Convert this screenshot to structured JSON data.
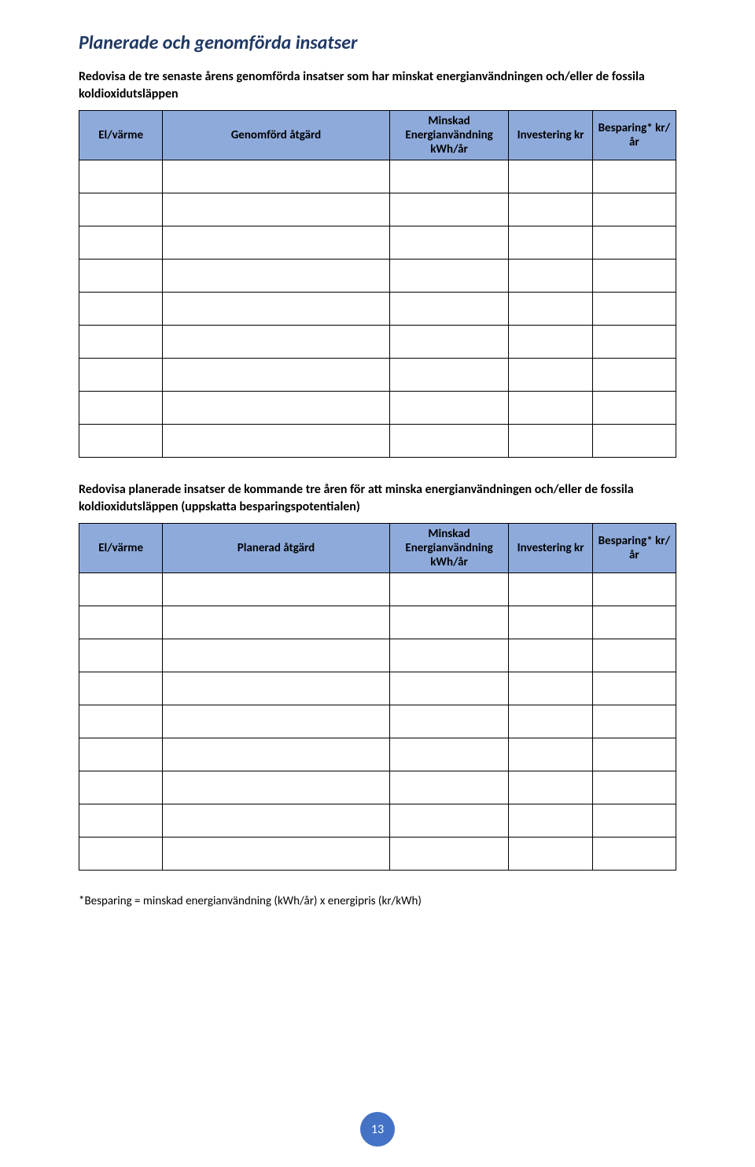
{
  "section_title": "Planerade och genomförda insatser",
  "intro1": "Redovisa de tre senaste årens genomförda insatser som har minskat energianvändningen och/eller de fossila koldioxidutsläppen",
  "table1": {
    "headers": {
      "c1": "El/värme",
      "c2": "Genomförd åtgärd",
      "c3": "Minskad Energianvändning kWh/år",
      "c4": "Investering kr",
      "c5": "Besparing* kr/år"
    },
    "rows": [
      {
        "c1": "",
        "c2": "",
        "c3": "",
        "c4": "",
        "c5": ""
      },
      {
        "c1": "",
        "c2": "",
        "c3": "",
        "c4": "",
        "c5": ""
      },
      {
        "c1": "",
        "c2": "",
        "c3": "",
        "c4": "",
        "c5": ""
      },
      {
        "c1": "",
        "c2": "",
        "c3": "",
        "c4": "",
        "c5": ""
      },
      {
        "c1": "",
        "c2": "",
        "c3": "",
        "c4": "",
        "c5": ""
      },
      {
        "c1": "",
        "c2": "",
        "c3": "",
        "c4": "",
        "c5": ""
      },
      {
        "c1": "",
        "c2": "",
        "c3": "",
        "c4": "",
        "c5": ""
      },
      {
        "c1": "",
        "c2": "",
        "c3": "",
        "c4": "",
        "c5": ""
      },
      {
        "c1": "",
        "c2": "",
        "c3": "",
        "c4": "",
        "c5": ""
      }
    ]
  },
  "intro2": "Redovisa planerade insatser de kommande tre åren för att minska energianvändningen och/eller de fossila koldioxidutsläppen (uppskatta besparingspotentialen)",
  "table2": {
    "headers": {
      "c1": "El/värme",
      "c2": "Planerad åtgärd",
      "c3": "Minskad Energianvändning kWh/år",
      "c4": "Investering kr",
      "c5": "Besparing* kr/år"
    },
    "rows": [
      {
        "c1": "",
        "c2": "",
        "c3": "",
        "c4": "",
        "c5": ""
      },
      {
        "c1": "",
        "c2": "",
        "c3": "",
        "c4": "",
        "c5": ""
      },
      {
        "c1": "",
        "c2": "",
        "c3": "",
        "c4": "",
        "c5": ""
      },
      {
        "c1": "",
        "c2": "",
        "c3": "",
        "c4": "",
        "c5": ""
      },
      {
        "c1": "",
        "c2": "",
        "c3": "",
        "c4": "",
        "c5": ""
      },
      {
        "c1": "",
        "c2": "",
        "c3": "",
        "c4": "",
        "c5": ""
      },
      {
        "c1": "",
        "c2": "",
        "c3": "",
        "c4": "",
        "c5": ""
      },
      {
        "c1": "",
        "c2": "",
        "c3": "",
        "c4": "",
        "c5": ""
      },
      {
        "c1": "",
        "c2": "",
        "c3": "",
        "c4": "",
        "c5": ""
      }
    ]
  },
  "footnote": "*Besparing = minskad energianvändning (kWh/år) x energipris (kr/kWh)",
  "page_number": "13",
  "colors": {
    "heading": "#1f3864",
    "header_bg": "#8eaadb",
    "page_num_bg": "#4472c4",
    "text": "#000000",
    "border": "#000000",
    "background": "#ffffff"
  }
}
